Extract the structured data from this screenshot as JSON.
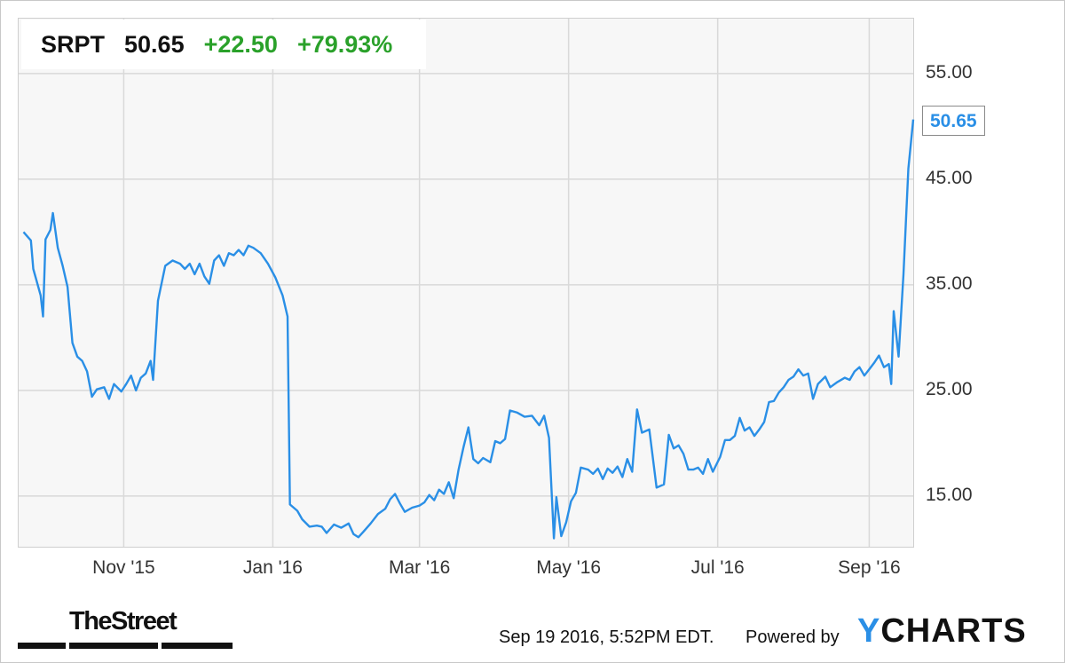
{
  "header": {
    "symbol": "SRPT",
    "last": "50.65",
    "change": "+22.50",
    "change_pct": "+79.93%"
  },
  "last_label": "50.65",
  "footer": {
    "timestamp": "Sep 19 2016, 5:52PM EDT.",
    "powered_by": "Powered by",
    "brand_first": "Y",
    "brand_rest": "CHARTS",
    "publisher": "TheStreet"
  },
  "colors": {
    "line": "#2a8fe6",
    "positive": "#2aa12a",
    "grid": "#d9d9d9",
    "plot_bg": "#f7f7f7"
  },
  "chart_data": {
    "type": "line",
    "title": "",
    "xlabel": "",
    "ylabel": "",
    "ylim": [
      10.2,
      60.2
    ],
    "xlim": [
      "2015-09-19",
      "2016-09-19"
    ],
    "y_ticks": [
      {
        "value": 55,
        "label": "55.00"
      },
      {
        "value": 45,
        "label": "45.00"
      },
      {
        "value": 35,
        "label": "35.00"
      },
      {
        "value": 25,
        "label": "25.00"
      },
      {
        "value": 15,
        "label": "15.00"
      }
    ],
    "x_ticks": [
      {
        "date": "2015-11-01",
        "label": "Nov '15"
      },
      {
        "date": "2016-01-01",
        "label": "Jan '16"
      },
      {
        "date": "2016-03-01",
        "label": "Mar '16"
      },
      {
        "date": "2016-05-01",
        "label": "May '16"
      },
      {
        "date": "2016-07-01",
        "label": "Jul '16"
      },
      {
        "date": "2016-09-01",
        "label": "Sep '16"
      }
    ],
    "grid": true,
    "legend": "none",
    "series": [
      {
        "name": "SRPT",
        "points": [
          [
            "2015-09-21",
            40.0
          ],
          [
            "2015-09-24",
            39.2
          ],
          [
            "2015-09-25",
            36.5
          ],
          [
            "2015-09-28",
            34.0
          ],
          [
            "2015-09-29",
            32.0
          ],
          [
            "2015-09-30",
            39.3
          ],
          [
            "2015-10-02",
            40.2
          ],
          [
            "2015-10-03",
            41.8
          ],
          [
            "2015-10-05",
            38.5
          ],
          [
            "2015-10-07",
            36.8
          ],
          [
            "2015-10-09",
            34.8
          ],
          [
            "2015-10-11",
            29.5
          ],
          [
            "2015-10-13",
            28.2
          ],
          [
            "2015-10-15",
            27.8
          ],
          [
            "2015-10-17",
            26.8
          ],
          [
            "2015-10-19",
            24.4
          ],
          [
            "2015-10-21",
            25.1
          ],
          [
            "2015-10-24",
            25.3
          ],
          [
            "2015-10-26",
            24.2
          ],
          [
            "2015-10-28",
            25.6
          ],
          [
            "2015-10-31",
            24.9
          ],
          [
            "2015-11-02",
            25.6
          ],
          [
            "2015-11-04",
            26.4
          ],
          [
            "2015-11-06",
            25.0
          ],
          [
            "2015-11-08",
            26.2
          ],
          [
            "2015-11-10",
            26.6
          ],
          [
            "2015-11-12",
            27.8
          ],
          [
            "2015-11-13",
            26.0
          ],
          [
            "2015-11-15",
            33.5
          ],
          [
            "2015-11-18",
            36.8
          ],
          [
            "2015-11-21",
            37.3
          ],
          [
            "2015-11-24",
            37.0
          ],
          [
            "2015-11-26",
            36.5
          ],
          [
            "2015-11-28",
            37.0
          ],
          [
            "2015-11-30",
            36.0
          ],
          [
            "2015-12-02",
            37.0
          ],
          [
            "2015-12-04",
            35.8
          ],
          [
            "2015-12-06",
            35.1
          ],
          [
            "2015-12-08",
            37.3
          ],
          [
            "2015-12-10",
            37.8
          ],
          [
            "2015-12-12",
            36.8
          ],
          [
            "2015-12-14",
            38.0
          ],
          [
            "2015-12-16",
            37.8
          ],
          [
            "2015-12-18",
            38.3
          ],
          [
            "2015-12-20",
            37.8
          ],
          [
            "2015-12-22",
            38.7
          ],
          [
            "2015-12-24",
            38.5
          ],
          [
            "2015-12-27",
            38.0
          ],
          [
            "2015-12-30",
            37.0
          ],
          [
            "2016-01-02",
            35.7
          ],
          [
            "2016-01-05",
            34.0
          ],
          [
            "2016-01-07",
            32.0
          ],
          [
            "2016-01-08",
            14.2
          ],
          [
            "2016-01-11",
            13.6
          ],
          [
            "2016-01-13",
            12.8
          ],
          [
            "2016-01-16",
            12.1
          ],
          [
            "2016-01-19",
            12.2
          ],
          [
            "2016-01-21",
            12.1
          ],
          [
            "2016-01-23",
            11.5
          ],
          [
            "2016-01-26",
            12.3
          ],
          [
            "2016-01-29",
            12.0
          ],
          [
            "2016-02-01",
            12.4
          ],
          [
            "2016-02-03",
            11.4
          ],
          [
            "2016-02-05",
            11.1
          ],
          [
            "2016-02-07",
            11.6
          ],
          [
            "2016-02-10",
            12.4
          ],
          [
            "2016-02-13",
            13.3
          ],
          [
            "2016-02-16",
            13.8
          ],
          [
            "2016-02-18",
            14.7
          ],
          [
            "2016-02-20",
            15.2
          ],
          [
            "2016-02-22",
            14.3
          ],
          [
            "2016-02-24",
            13.5
          ],
          [
            "2016-02-27",
            13.9
          ],
          [
            "2016-03-01",
            14.1
          ],
          [
            "2016-03-03",
            14.4
          ],
          [
            "2016-03-05",
            15.1
          ],
          [
            "2016-03-07",
            14.6
          ],
          [
            "2016-03-09",
            15.6
          ],
          [
            "2016-03-11",
            15.2
          ],
          [
            "2016-03-13",
            16.3
          ],
          [
            "2016-03-15",
            14.8
          ],
          [
            "2016-03-17",
            17.5
          ],
          [
            "2016-03-19",
            19.6
          ],
          [
            "2016-03-21",
            21.5
          ],
          [
            "2016-03-23",
            18.5
          ],
          [
            "2016-03-25",
            18.1
          ],
          [
            "2016-03-27",
            18.6
          ],
          [
            "2016-03-30",
            18.2
          ],
          [
            "2016-04-01",
            20.2
          ],
          [
            "2016-04-03",
            20.0
          ],
          [
            "2016-04-05",
            20.4
          ],
          [
            "2016-04-07",
            23.1
          ],
          [
            "2016-04-10",
            22.9
          ],
          [
            "2016-04-13",
            22.5
          ],
          [
            "2016-04-16",
            22.6
          ],
          [
            "2016-04-19",
            21.7
          ],
          [
            "2016-04-21",
            22.6
          ],
          [
            "2016-04-23",
            20.5
          ],
          [
            "2016-04-25",
            11.0
          ],
          [
            "2016-04-26",
            14.9
          ],
          [
            "2016-04-28",
            11.2
          ],
          [
            "2016-04-30",
            12.5
          ],
          [
            "2016-05-02",
            14.5
          ],
          [
            "2016-05-04",
            15.3
          ],
          [
            "2016-05-06",
            17.7
          ],
          [
            "2016-05-09",
            17.5
          ],
          [
            "2016-05-11",
            17.1
          ],
          [
            "2016-05-13",
            17.6
          ],
          [
            "2016-05-15",
            16.6
          ],
          [
            "2016-05-17",
            17.6
          ],
          [
            "2016-05-19",
            17.2
          ],
          [
            "2016-05-21",
            17.8
          ],
          [
            "2016-05-23",
            16.8
          ],
          [
            "2016-05-25",
            18.5
          ],
          [
            "2016-05-27",
            17.3
          ],
          [
            "2016-05-29",
            23.2
          ],
          [
            "2016-05-31",
            21.0
          ],
          [
            "2016-06-03",
            21.3
          ],
          [
            "2016-06-06",
            15.8
          ],
          [
            "2016-06-09",
            16.1
          ],
          [
            "2016-06-11",
            20.8
          ],
          [
            "2016-06-13",
            19.5
          ],
          [
            "2016-06-15",
            19.8
          ],
          [
            "2016-06-17",
            19.0
          ],
          [
            "2016-06-19",
            17.5
          ],
          [
            "2016-06-21",
            17.5
          ],
          [
            "2016-06-23",
            17.7
          ],
          [
            "2016-06-25",
            17.1
          ],
          [
            "2016-06-27",
            18.5
          ],
          [
            "2016-06-29",
            17.3
          ],
          [
            "2016-07-02",
            18.7
          ],
          [
            "2016-07-04",
            20.3
          ],
          [
            "2016-07-06",
            20.3
          ],
          [
            "2016-07-08",
            20.7
          ],
          [
            "2016-07-10",
            22.4
          ],
          [
            "2016-07-12",
            21.2
          ],
          [
            "2016-07-14",
            21.5
          ],
          [
            "2016-07-16",
            20.7
          ],
          [
            "2016-07-18",
            21.3
          ],
          [
            "2016-07-20",
            22.0
          ],
          [
            "2016-07-22",
            23.9
          ],
          [
            "2016-07-24",
            24.0
          ],
          [
            "2016-07-26",
            24.8
          ],
          [
            "2016-07-28",
            25.3
          ],
          [
            "2016-07-30",
            26.0
          ],
          [
            "2016-08-01",
            26.3
          ],
          [
            "2016-08-03",
            27.0
          ],
          [
            "2016-08-05",
            26.4
          ],
          [
            "2016-08-07",
            26.6
          ],
          [
            "2016-08-09",
            24.2
          ],
          [
            "2016-08-11",
            25.6
          ],
          [
            "2016-08-14",
            26.3
          ],
          [
            "2016-08-16",
            25.3
          ],
          [
            "2016-08-19",
            25.8
          ],
          [
            "2016-08-22",
            26.2
          ],
          [
            "2016-08-24",
            26.0
          ],
          [
            "2016-08-26",
            26.8
          ],
          [
            "2016-08-28",
            27.2
          ],
          [
            "2016-08-30",
            26.4
          ],
          [
            "2016-09-01",
            27.0
          ],
          [
            "2016-09-03",
            27.6
          ],
          [
            "2016-09-05",
            28.3
          ],
          [
            "2016-09-07",
            27.2
          ],
          [
            "2016-09-09",
            27.5
          ],
          [
            "2016-09-10",
            25.6
          ],
          [
            "2016-09-11",
            32.5
          ],
          [
            "2016-09-13",
            28.2
          ],
          [
            "2016-09-15",
            36.0
          ],
          [
            "2016-09-17",
            46.0
          ],
          [
            "2016-09-19",
            50.65
          ]
        ]
      }
    ]
  }
}
